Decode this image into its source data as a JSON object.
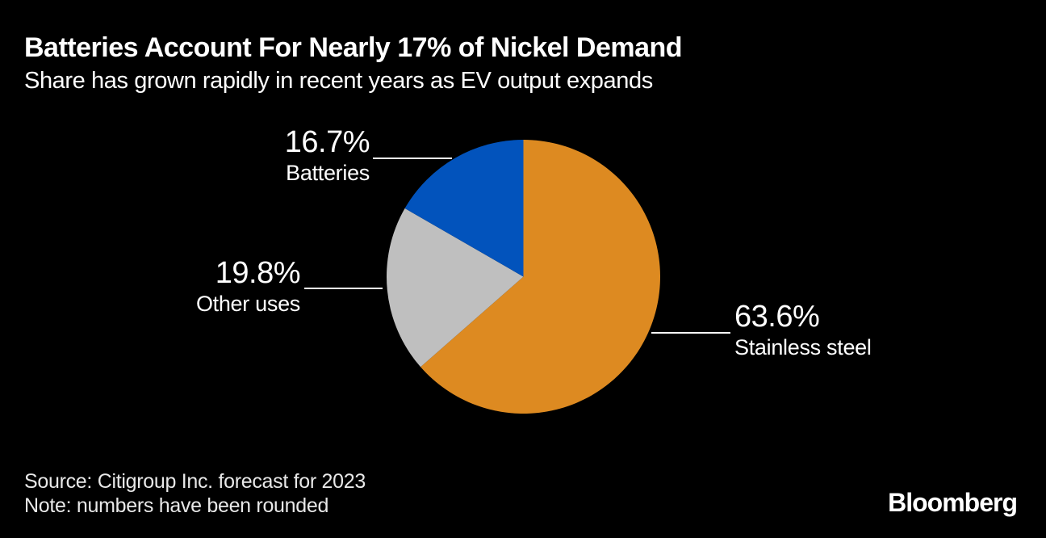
{
  "header": {
    "title": "Batteries Account For Nearly 17% of Nickel Demand",
    "subtitle": "Share has grown rapidly in recent years as EV output expands"
  },
  "chart_data": {
    "type": "pie",
    "title": "Batteries Account For Nearly 17% of Nickel Demand",
    "subtitle": "Share has grown rapidly in recent years as EV output expands",
    "unit": "%",
    "start_angle_deg": 0,
    "direction": "clockwise",
    "legend_position": "callout-labels",
    "slices": [
      {
        "label": "Stainless steel",
        "value": 63.6,
        "display": "63.6%",
        "color": "#DD8A21"
      },
      {
        "label": "Other uses",
        "value": 19.8,
        "display": "19.8%",
        "color": "#BFBFBF"
      },
      {
        "label": "Batteries",
        "value": 16.7,
        "display": "16.7%",
        "color": "#0253BC"
      }
    ]
  },
  "footer": {
    "source": "Source: Citigroup Inc. forecast for 2023",
    "note": "Note: numbers have been rounded",
    "brand": "Bloomberg"
  },
  "colors": {
    "background": "#000000",
    "text": "#FFFFFF",
    "footer_text": "#E8E8E8",
    "leader_line": "#FFFFFF",
    "stainless_steel": "#DD8A21",
    "other_uses": "#BFBFBF",
    "batteries": "#0253BC"
  }
}
